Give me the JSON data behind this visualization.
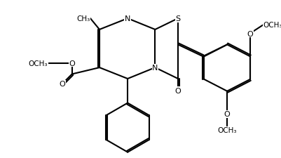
{
  "bg_color": "#ffffff",
  "line_color": "#000000",
  "line_width": 1.5,
  "figsize": [
    4.02,
    2.26
  ],
  "dpi": 100,
  "xlim": [
    0.0,
    4.02
  ],
  "ylim": [
    0.0,
    2.26
  ]
}
